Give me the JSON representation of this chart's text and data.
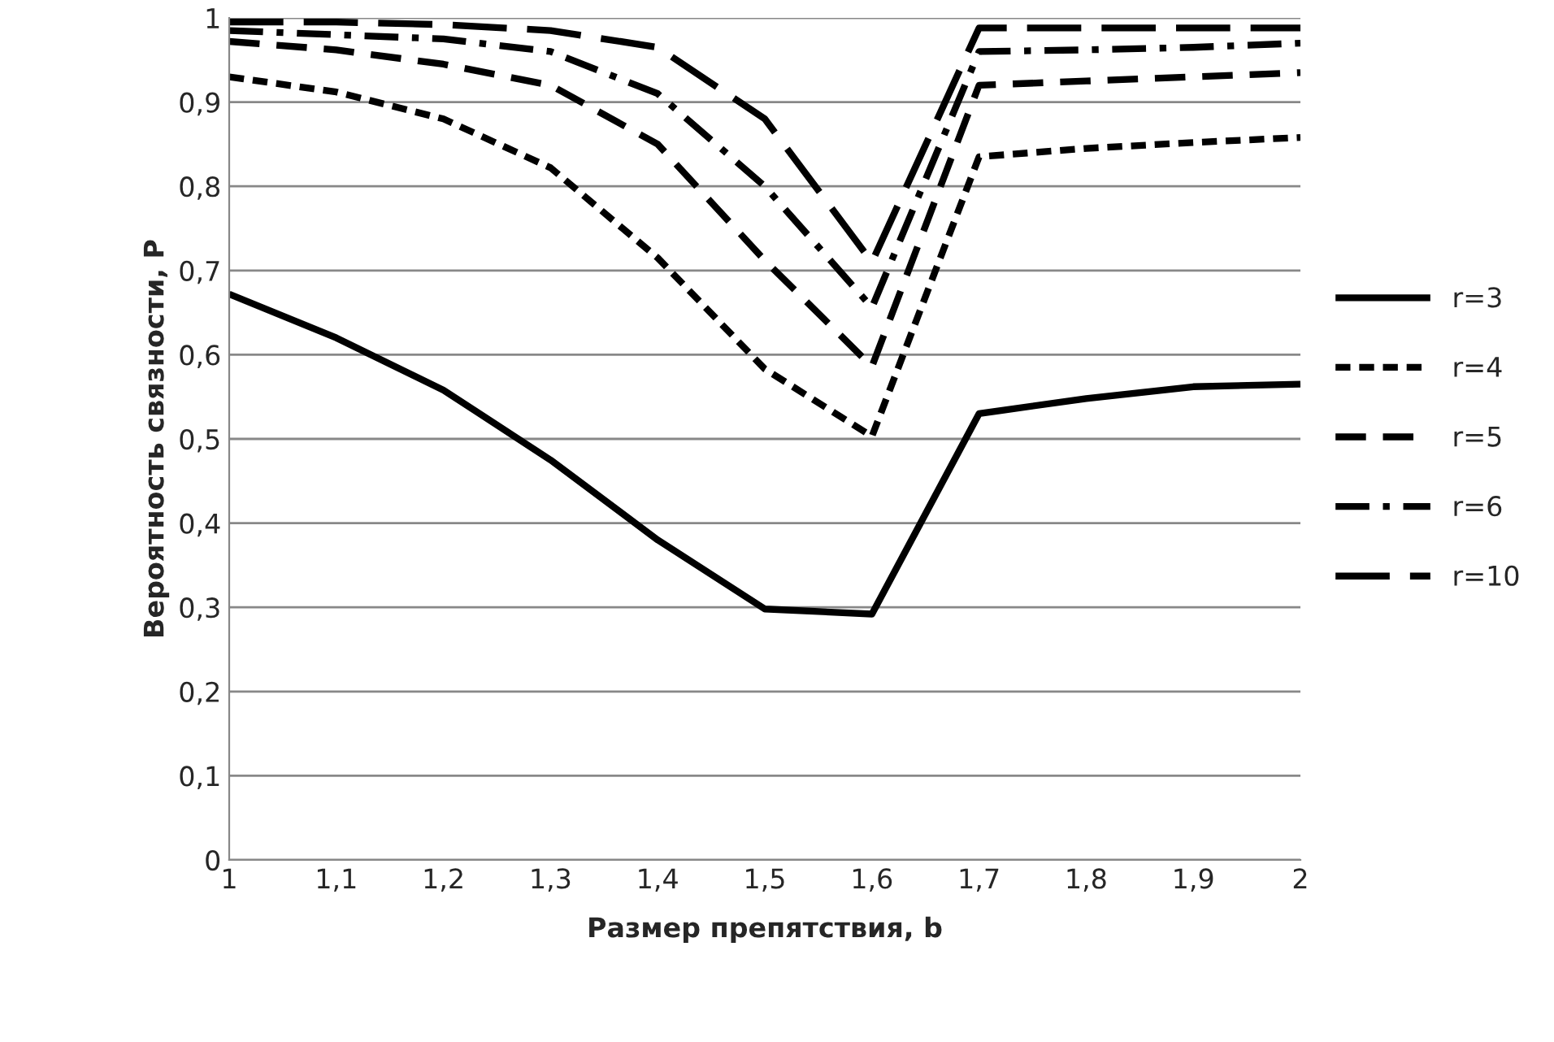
{
  "chart_data": {
    "type": "line",
    "xlabel": "Размер препятствия, b",
    "ylabel": "Вероятность связности, P",
    "x": [
      1,
      1.1,
      1.2,
      1.3,
      1.4,
      1.5,
      1.6,
      1.7,
      1.8,
      1.9,
      2
    ],
    "series": [
      {
        "name": "r=3",
        "color": "#000000",
        "line_style": "solid",
        "values": [
          0.672,
          0.62,
          0.558,
          0.475,
          0.38,
          0.298,
          0.292,
          0.53,
          0.548,
          0.562,
          0.565
        ]
      },
      {
        "name": "r=4",
        "color": "#000000",
        "line_style": "dotted",
        "values": [
          0.93,
          0.912,
          0.88,
          0.822,
          0.715,
          0.583,
          0.503,
          0.835,
          0.845,
          0.852,
          0.858
        ]
      },
      {
        "name": "r=5",
        "color": "#000000",
        "line_style": "dashed",
        "values": [
          0.972,
          0.962,
          0.945,
          0.92,
          0.85,
          0.712,
          0.586,
          0.92,
          0.925,
          0.93,
          0.935
        ]
      },
      {
        "name": "r=6",
        "color": "#000000",
        "line_style": "dashdot",
        "values": [
          0.985,
          0.98,
          0.975,
          0.96,
          0.91,
          0.8,
          0.656,
          0.96,
          0.962,
          0.965,
          0.97
        ]
      },
      {
        "name": "r=10",
        "color": "#000000",
        "line_style": "longdash",
        "values": [
          0.995,
          0.995,
          0.992,
          0.985,
          0.965,
          0.88,
          0.71,
          0.988,
          0.988,
          0.988,
          0.988
        ]
      }
    ],
    "xlim": [
      1,
      2
    ],
    "xticks": [
      1,
      {
        "value": 1.1,
        "label": "1,1"
      },
      {
        "value": 1.2,
        "label": "1,2"
      },
      {
        "value": 1.3,
        "label": "1,3"
      },
      {
        "value": 1.4,
        "label": "1,4"
      },
      {
        "value": 1.5,
        "label": "1,5"
      },
      {
        "value": 1.6,
        "label": "1,6"
      },
      {
        "value": 1.7,
        "label": "1,7"
      },
      {
        "value": 1.8,
        "label": "1,8"
      },
      {
        "value": 1.9,
        "label": "1,9"
      },
      2
    ],
    "ylim": [
      0,
      1
    ],
    "yticks": [
      0,
      {
        "value": 0.1,
        "label": "0,1"
      },
      {
        "value": 0.2,
        "label": "0,2"
      },
      {
        "value": 0.3,
        "label": "0,3"
      },
      {
        "value": 0.4,
        "label": "0,4"
      },
      {
        "value": 0.5,
        "label": "0,5"
      },
      {
        "value": 0.6,
        "label": "0,6"
      },
      {
        "value": 0.7,
        "label": "0,7"
      },
      {
        "value": 0.8,
        "label": "0,8"
      },
      {
        "value": 0.9,
        "label": "0,9"
      },
      1
    ],
    "grid": "y",
    "legend": "right",
    "marker": "none"
  }
}
